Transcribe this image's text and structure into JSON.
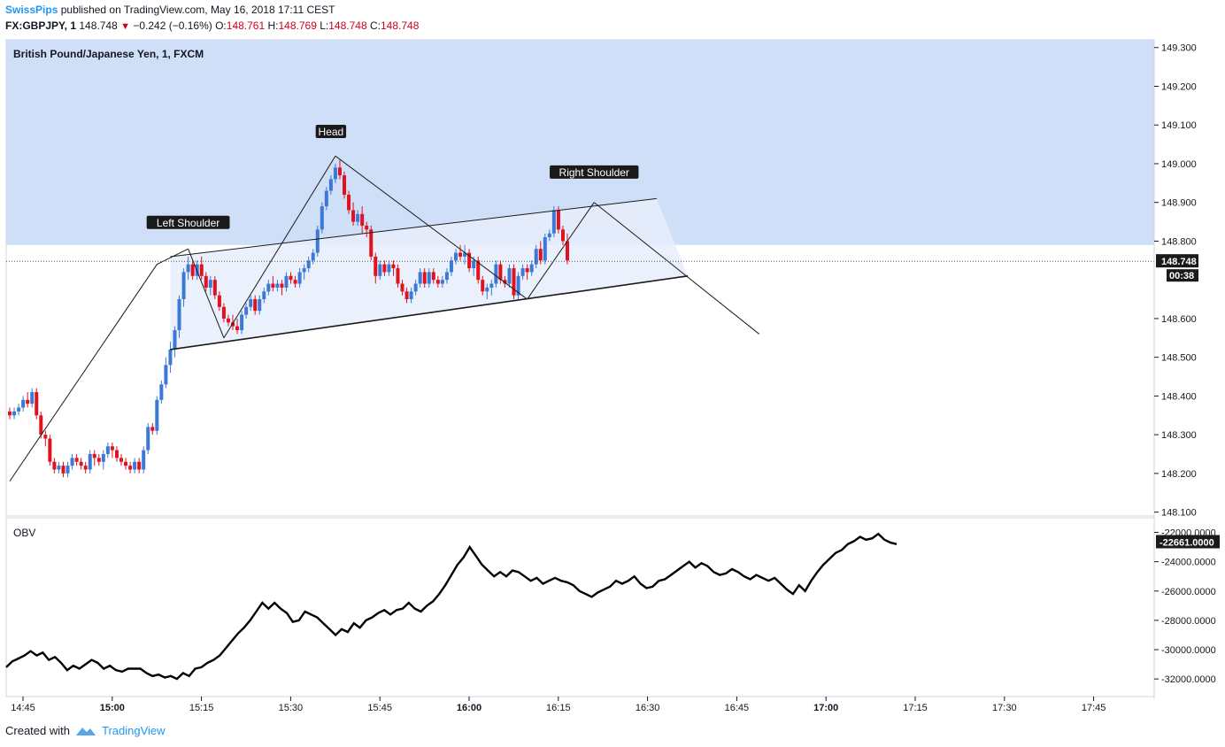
{
  "header": {
    "author": "SwissPips",
    "published_text": "published on TradingView.com, May 16, 2018 17:11 CEST",
    "symbol": "FX:GBPJPY, 1",
    "last": "148.748",
    "change": "−0.242 (−0.16%)",
    "o_label": "O:",
    "o_value": "148.761",
    "h_label": "H:",
    "h_value": "148.769",
    "l_label": "L:",
    "l_value": "148.748",
    "c_label": "C:",
    "c_value": "148.748"
  },
  "legend_title": "British Pound/Japanese Yen, 1, FXCM",
  "indicator_label": "OBV",
  "footer": {
    "created_with": "Created with",
    "brand": "TradingView"
  },
  "colors": {
    "up": "#3c78d8",
    "down": "#e0121e",
    "zone": "#cfdff7",
    "line": "#1a1a1a",
    "price_tag": "#1a1a1a"
  },
  "chart_data": {
    "type": "candlestick",
    "title": "British Pound/Japanese Yen, 1, FXCM",
    "price_axis": {
      "ticks": [
        "149.300",
        "149.200",
        "149.100",
        "149.000",
        "148.900",
        "148.800",
        "148.600",
        "148.500",
        "148.400",
        "148.300",
        "148.200",
        "148.100"
      ],
      "ylim": [
        148.09,
        149.32
      ]
    },
    "current_price_label": "148.748",
    "countdown_label": "00:38",
    "time_axis": {
      "ticks": [
        {
          "label": "14:45",
          "bold": false
        },
        {
          "label": "15:00",
          "bold": true
        },
        {
          "label": "15:15",
          "bold": false
        },
        {
          "label": "15:30",
          "bold": false
        },
        {
          "label": "15:45",
          "bold": false
        },
        {
          "label": "16:00",
          "bold": true
        },
        {
          "label": "16:15",
          "bold": false
        },
        {
          "label": "16:30",
          "bold": false
        },
        {
          "label": "16:45",
          "bold": false
        },
        {
          "label": "17:00",
          "bold": true
        },
        {
          "label": "17:15",
          "bold": false
        },
        {
          "label": "17:30",
          "bold": false
        },
        {
          "label": "17:45",
          "bold": false
        }
      ]
    },
    "annotations": [
      "Left Shoulder",
      "Head",
      "Right Shoulder"
    ],
    "candles_ohlc": [
      [
        148.36,
        148.37,
        148.34,
        148.35
      ],
      [
        148.35,
        148.37,
        148.34,
        148.36
      ],
      [
        148.36,
        148.38,
        148.35,
        148.37
      ],
      [
        148.37,
        148.4,
        148.36,
        148.39
      ],
      [
        148.39,
        148.41,
        148.37,
        148.38
      ],
      [
        148.38,
        148.42,
        148.37,
        148.41
      ],
      [
        148.41,
        148.42,
        148.34,
        148.35
      ],
      [
        148.35,
        148.36,
        148.29,
        148.3
      ],
      [
        148.3,
        148.31,
        148.27,
        148.29
      ],
      [
        148.29,
        148.3,
        148.22,
        148.23
      ],
      [
        148.23,
        148.24,
        148.2,
        148.21
      ],
      [
        148.21,
        148.23,
        148.2,
        148.22
      ],
      [
        148.22,
        148.23,
        148.19,
        148.2
      ],
      [
        148.2,
        148.23,
        148.19,
        148.22
      ],
      [
        148.22,
        148.25,
        148.21,
        148.24
      ],
      [
        148.24,
        148.25,
        148.22,
        148.23
      ],
      [
        148.23,
        148.24,
        148.21,
        148.22
      ],
      [
        148.22,
        148.23,
        148.2,
        148.21
      ],
      [
        148.21,
        148.26,
        148.2,
        148.25
      ],
      [
        148.25,
        148.26,
        148.22,
        148.24
      ],
      [
        148.24,
        148.25,
        148.22,
        148.23
      ],
      [
        148.23,
        148.26,
        148.21,
        148.25
      ],
      [
        148.25,
        148.28,
        148.24,
        148.27
      ],
      [
        148.27,
        148.28,
        148.24,
        148.26
      ],
      [
        148.26,
        148.27,
        148.23,
        148.24
      ],
      [
        148.24,
        148.25,
        148.22,
        148.23
      ],
      [
        148.23,
        148.24,
        148.21,
        148.22
      ],
      [
        148.22,
        148.23,
        148.2,
        148.21
      ],
      [
        148.21,
        148.24,
        148.2,
        148.23
      ],
      [
        148.23,
        148.24,
        148.2,
        148.21
      ],
      [
        148.21,
        148.27,
        148.2,
        148.26
      ],
      [
        148.26,
        148.33,
        148.25,
        148.32
      ],
      [
        148.32,
        148.33,
        148.3,
        148.31
      ],
      [
        148.31,
        148.4,
        148.3,
        148.39
      ],
      [
        148.39,
        148.44,
        148.38,
        148.43
      ],
      [
        148.43,
        148.5,
        148.42,
        148.48
      ],
      [
        148.48,
        148.54,
        148.46,
        148.52
      ],
      [
        148.52,
        148.58,
        148.5,
        148.57
      ],
      [
        148.57,
        148.66,
        148.55,
        148.65
      ],
      [
        148.65,
        148.73,
        148.63,
        148.72
      ],
      [
        148.72,
        148.76,
        148.7,
        148.74
      ],
      [
        148.74,
        148.75,
        148.7,
        148.71
      ],
      [
        148.71,
        148.75,
        148.7,
        148.74
      ],
      [
        148.74,
        148.76,
        148.7,
        148.71
      ],
      [
        148.71,
        148.72,
        148.67,
        148.68
      ],
      [
        148.68,
        148.71,
        148.66,
        148.7
      ],
      [
        148.7,
        148.71,
        148.65,
        148.66
      ],
      [
        148.66,
        148.67,
        148.62,
        148.63
      ],
      [
        148.63,
        148.64,
        148.59,
        148.6
      ],
      [
        148.6,
        148.61,
        148.58,
        148.59
      ],
      [
        148.59,
        148.61,
        148.57,
        148.58
      ],
      [
        148.58,
        148.6,
        148.56,
        148.57
      ],
      [
        148.57,
        148.62,
        148.56,
        148.61
      ],
      [
        148.61,
        148.64,
        148.6,
        148.63
      ],
      [
        148.63,
        148.66,
        148.62,
        148.65
      ],
      [
        148.65,
        148.66,
        148.61,
        148.62
      ],
      [
        148.62,
        148.66,
        148.61,
        148.65
      ],
      [
        148.65,
        148.68,
        148.64,
        148.67
      ],
      [
        148.67,
        148.7,
        148.66,
        148.69
      ],
      [
        148.69,
        148.71,
        148.67,
        148.68
      ],
      [
        148.68,
        148.7,
        148.67,
        148.69
      ],
      [
        148.69,
        148.7,
        148.66,
        148.68
      ],
      [
        148.68,
        148.72,
        148.67,
        148.71
      ],
      [
        148.71,
        148.72,
        148.69,
        148.7
      ],
      [
        148.7,
        148.71,
        148.68,
        148.69
      ],
      [
        148.69,
        148.73,
        148.68,
        148.72
      ],
      [
        148.72,
        148.74,
        148.7,
        148.73
      ],
      [
        148.73,
        148.76,
        148.72,
        148.75
      ],
      [
        148.75,
        148.78,
        148.74,
        148.77
      ],
      [
        148.77,
        148.84,
        148.76,
        148.83
      ],
      [
        148.83,
        148.9,
        148.82,
        148.89
      ],
      [
        148.89,
        148.94,
        148.88,
        148.93
      ],
      [
        148.93,
        148.97,
        148.92,
        148.96
      ],
      [
        148.96,
        149.0,
        148.95,
        148.99
      ],
      [
        148.99,
        149.01,
        148.96,
        148.97
      ],
      [
        148.97,
        148.98,
        148.91,
        148.92
      ],
      [
        148.92,
        148.93,
        148.87,
        148.88
      ],
      [
        148.88,
        148.9,
        148.84,
        148.85
      ],
      [
        148.85,
        148.88,
        148.84,
        148.87
      ],
      [
        148.87,
        148.89,
        148.82,
        148.84
      ],
      [
        148.84,
        148.85,
        148.81,
        148.83
      ],
      [
        148.83,
        148.84,
        148.75,
        148.76
      ],
      [
        148.76,
        148.77,
        148.69,
        148.71
      ],
      [
        148.71,
        148.75,
        148.7,
        148.74
      ],
      [
        148.74,
        148.75,
        148.71,
        148.72
      ],
      [
        148.72,
        148.75,
        148.71,
        148.74
      ],
      [
        148.74,
        148.75,
        148.71,
        148.73
      ],
      [
        148.73,
        148.74,
        148.68,
        148.69
      ],
      [
        148.69,
        148.7,
        148.66,
        148.67
      ],
      [
        148.67,
        148.68,
        148.64,
        148.65
      ],
      [
        148.65,
        148.68,
        148.64,
        148.67
      ],
      [
        148.67,
        148.7,
        148.66,
        148.69
      ],
      [
        148.69,
        148.73,
        148.68,
        148.72
      ],
      [
        148.72,
        148.73,
        148.68,
        148.69
      ],
      [
        148.69,
        148.73,
        148.68,
        148.72
      ],
      [
        148.72,
        148.73,
        148.69,
        148.7
      ],
      [
        148.7,
        148.71,
        148.68,
        148.69
      ],
      [
        148.69,
        148.71,
        148.68,
        148.7
      ],
      [
        148.7,
        148.73,
        148.69,
        148.72
      ],
      [
        148.72,
        148.76,
        148.71,
        148.75
      ],
      [
        148.75,
        148.78,
        148.74,
        148.77
      ],
      [
        148.77,
        148.79,
        148.75,
        148.76
      ],
      [
        148.76,
        148.79,
        148.74,
        148.77
      ],
      [
        148.77,
        148.78,
        148.72,
        148.73
      ],
      [
        148.73,
        148.76,
        148.71,
        148.75
      ],
      [
        148.75,
        148.76,
        148.69,
        148.7
      ],
      [
        148.7,
        148.71,
        148.66,
        148.67
      ],
      [
        148.67,
        148.69,
        148.65,
        148.68
      ],
      [
        148.68,
        148.7,
        148.66,
        148.69
      ],
      [
        148.69,
        148.75,
        148.68,
        148.74
      ],
      [
        148.74,
        148.75,
        148.69,
        148.7
      ],
      [
        148.7,
        148.71,
        148.68,
        148.69
      ],
      [
        148.69,
        148.74,
        148.68,
        148.73
      ],
      [
        148.73,
        148.74,
        148.65,
        148.66
      ],
      [
        148.66,
        148.72,
        148.65,
        148.71
      ],
      [
        148.71,
        148.74,
        148.7,
        148.73
      ],
      [
        148.73,
        148.74,
        148.7,
        148.72
      ],
      [
        148.72,
        148.75,
        148.71,
        148.74
      ],
      [
        148.74,
        148.79,
        148.73,
        148.78
      ],
      [
        148.78,
        148.8,
        148.74,
        148.75
      ],
      [
        148.75,
        148.82,
        148.74,
        148.81
      ],
      [
        148.81,
        148.83,
        148.8,
        148.82
      ],
      [
        148.82,
        148.89,
        148.81,
        148.88
      ],
      [
        148.88,
        148.89,
        148.82,
        148.83
      ],
      [
        148.83,
        148.84,
        148.79,
        148.8
      ],
      [
        148.8,
        148.82,
        148.74,
        148.75
      ]
    ],
    "obv_axis": {
      "ticks": [
        "-22000.0000",
        "-24000.0000",
        "-26000.0000",
        "-28000.0000",
        "-30000.0000",
        "-32000.0000"
      ],
      "ylim": [
        -33200,
        -21000
      ]
    },
    "obv_current_label": "-22661.0000",
    "obv": [
      -31200,
      -30800,
      -30600,
      -30400,
      -30100,
      -30400,
      -30200,
      -30700,
      -30500,
      -30900,
      -31400,
      -31100,
      -31300,
      -31000,
      -30700,
      -30900,
      -31300,
      -31100,
      -31400,
      -31500,
      -31300,
      -31300,
      -31300,
      -31600,
      -31800,
      -31700,
      -31900,
      -31800,
      -32000,
      -31600,
      -31800,
      -31300,
      -31200,
      -30900,
      -30700,
      -30400,
      -29900,
      -29400,
      -28900,
      -28500,
      -28000,
      -27400,
      -26800,
      -27200,
      -26800,
      -27200,
      -27500,
      -28100,
      -28000,
      -27400,
      -27600,
      -27800,
      -28200,
      -28600,
      -29000,
      -28600,
      -28800,
      -28200,
      -28500,
      -28000,
      -27800,
      -27500,
      -27300,
      -27600,
      -27300,
      -27200,
      -26800,
      -27200,
      -27400,
      -27000,
      -26700,
      -26200,
      -25600,
      -24900,
      -24200,
      -23700,
      -23000,
      -23600,
      -24200,
      -24600,
      -25000,
      -24700,
      -25000,
      -24600,
      -24700,
      -25000,
      -25300,
      -25100,
      -25500,
      -25300,
      -25100,
      -25300,
      -25400,
      -25600,
      -26000,
      -26200,
      -26400,
      -26100,
      -25900,
      -25700,
      -25300,
      -25500,
      -25300,
      -25000,
      -25500,
      -25800,
      -25700,
      -25300,
      -25200,
      -24900,
      -24600,
      -24300,
      -24000,
      -24400,
      -24100,
      -24300,
      -24700,
      -24900,
      -24800,
      -24500,
      -24700,
      -25000,
      -25200,
      -24900,
      -25100,
      -25300,
      -25100,
      -25500,
      -25900,
      -26200,
      -25600,
      -26000,
      -25300,
      -24700,
      -24200,
      -23800,
      -23400,
      -23200,
      -22800,
      -22600,
      -22300,
      -22500,
      -22400,
      -22100,
      -22500,
      -22700,
      -22800
    ],
    "pattern_lines": {
      "trend": [
        [
          [
            0,
            148.18
          ],
          [
            33,
            148.74
          ],
          [
            40,
            148.78
          ]
        ],
        [
          [
            40,
            148.78
          ],
          [
            48,
            148.55
          ]
        ],
        [
          [
            48,
            148.55
          ],
          [
            73,
            149.02
          ]
        ],
        [
          [
            73,
            149.02
          ],
          [
            116,
            148.65
          ]
        ],
        [
          [
            116,
            148.65
          ],
          [
            131,
            148.9
          ]
        ],
        [
          [
            131,
            148.9
          ],
          [
            168,
            148.56
          ]
        ]
      ],
      "neck_upper": [
        [
          36,
          148.76
        ],
        [
          145,
          148.91
        ]
      ],
      "neck_lower": [
        [
          36,
          148.52
        ],
        [
          152,
          148.71
        ]
      ],
      "zone_top": 149.32,
      "zone_bottom": 148.79
    }
  }
}
